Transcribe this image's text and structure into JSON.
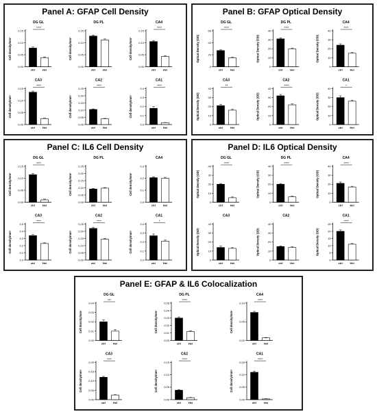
{
  "figure": {
    "x_labels": [
      "ctrl",
      "Hel"
    ],
    "colors": {
      "ctrl": "#000000",
      "hel": "#ffffff",
      "axis": "#000000"
    }
  },
  "chart_data": [
    {
      "title": "Panel A: GFAP Cell Density",
      "type": "bar",
      "ylabel": "Cell density/mm³",
      "charts": [
        {
          "region": "DG GL",
          "categories": [
            "ctrl",
            "Hel"
          ],
          "values": [
            0.078,
            0.038
          ],
          "errors": [
            0.004,
            0.003
          ],
          "ylim": [
            0,
            0.15
          ],
          "ticks": [
            "0.00",
            "0.05",
            "0.10",
            "0.15"
          ],
          "sig": "****"
        },
        {
          "region": "DG PL",
          "categories": [
            "ctrl",
            "Hel"
          ],
          "values": [
            0.128,
            0.112
          ],
          "errors": [
            0.004,
            0.004
          ],
          "ylim": [
            0,
            0.15
          ],
          "ticks": [
            "0.00",
            "0.05",
            "0.10",
            "0.15"
          ],
          "sig": ""
        },
        {
          "region": "CA4",
          "categories": [
            "ctrl",
            "Hel"
          ],
          "values": [
            0.105,
            0.043
          ],
          "errors": [
            0.004,
            0.003
          ],
          "ylim": [
            0,
            0.15
          ],
          "ticks": [
            "0.00",
            "0.05",
            "0.10",
            "0.15"
          ],
          "sig": "****"
        },
        {
          "region": "CA3",
          "categories": [
            "ctrl",
            "Hel"
          ],
          "values": [
            0.135,
            0.025
          ],
          "errors": [
            0.005,
            0.002
          ],
          "ylim": [
            0,
            0.15
          ],
          "ticks": [
            "0.00",
            "0.05",
            "0.10",
            "0.15"
          ],
          "sig": "****"
        },
        {
          "region": "CA2",
          "categories": [
            "ctrl",
            "Hel"
          ],
          "values": [
            0.105,
            0.04
          ],
          "errors": [
            0.004,
            0.003
          ],
          "ylim": [
            0,
            0.25
          ],
          "ticks": [
            "0.00",
            "0.05",
            "0.10",
            "0.15",
            "0.20",
            "0.25"
          ],
          "sig": "****"
        },
        {
          "region": "CA1",
          "categories": [
            "ctrl",
            "Hel"
          ],
          "values": [
            0.18,
            0.02
          ],
          "errors": [
            0.02,
            0.003
          ],
          "ylim": [
            0,
            0.4
          ],
          "ticks": [
            "0.0",
            "0.1",
            "0.2",
            "0.3",
            "0.4"
          ],
          "sig": "****"
        }
      ]
    },
    {
      "title": "Panel B: GFAP Optical Density",
      "type": "bar",
      "ylabel": "Optical Density (OD)",
      "charts": [
        {
          "region": "DG GL",
          "categories": [
            "ctrl",
            "Hel"
          ],
          "values": [
            27,
            15
          ],
          "errors": [
            1.2,
            1
          ],
          "ylim": [
            0,
            60
          ],
          "ticks": [
            "0",
            "20",
            "40",
            "60"
          ],
          "sig": "****"
        },
        {
          "region": "DG PL",
          "categories": [
            "ctrl",
            "Hel"
          ],
          "values": [
            31,
            20
          ],
          "errors": [
            1.2,
            0.8
          ],
          "ylim": [
            0,
            40
          ],
          "ticks": [
            "0",
            "10",
            "20",
            "30",
            "40"
          ],
          "sig": "****"
        },
        {
          "region": "CA4",
          "categories": [
            "ctrl",
            "Hel"
          ],
          "values": [
            24,
            15
          ],
          "errors": [
            1.5,
            0.8
          ],
          "ylim": [
            0,
            40
          ],
          "ticks": [
            "0",
            "10",
            "20",
            "30",
            "40"
          ],
          "sig": "****"
        },
        {
          "region": "CA3",
          "categories": [
            "ctrl",
            "Hel"
          ],
          "values": [
            21,
            16
          ],
          "errors": [
            1.5,
            1
          ],
          "ylim": [
            0,
            40
          ],
          "ticks": [
            "0",
            "10",
            "20",
            "30",
            "40"
          ],
          "sig": "**"
        },
        {
          "region": "CA2",
          "categories": [
            "ctrl",
            "Hel"
          ],
          "values": [
            32,
            22
          ],
          "errors": [
            1.5,
            1
          ],
          "ylim": [
            0,
            40
          ],
          "ticks": [
            "0",
            "10",
            "20",
            "30",
            "40"
          ],
          "sig": "****"
        },
        {
          "region": "CA1",
          "categories": [
            "ctrl",
            "Hel"
          ],
          "values": [
            30,
            26
          ],
          "errors": [
            2,
            1
          ],
          "ylim": [
            0,
            40
          ],
          "ticks": [
            "0",
            "10",
            "20",
            "30",
            "40"
          ],
          "sig": "*"
        }
      ]
    },
    {
      "title": "Panel C: IL6 Cell Density",
      "type": "bar",
      "ylabel": "Cell density/mm³",
      "charts": [
        {
          "region": "DG GL",
          "categories": [
            "ctrl",
            "Hel"
          ],
          "values": [
            0.115,
            0.01
          ],
          "errors": [
            0.005,
            0.003
          ],
          "ylim": [
            0,
            0.15
          ],
          "ticks": [
            "0.00",
            "0.05",
            "0.10",
            "0.15"
          ],
          "sig": "****"
        },
        {
          "region": "DG PL",
          "categories": [
            "ctrl",
            "Hel"
          ],
          "values": [
            0.092,
            0.098
          ],
          "errors": [
            0.004,
            0.004
          ],
          "ylim": [
            0,
            0.25
          ],
          "ticks": [
            "0.00",
            "0.05",
            "0.10",
            "0.15",
            "0.20",
            "0.25"
          ],
          "sig": ""
        },
        {
          "region": "CA4",
          "categories": [
            "ctrl",
            "Hel"
          ],
          "values": [
            0.205,
            0.2
          ],
          "errors": [
            0.008,
            0.008
          ],
          "ylim": [
            0,
            0.3
          ],
          "ticks": [
            "0.0",
            "0.1",
            "0.2",
            "0.3"
          ],
          "sig": ""
        },
        {
          "region": "CA3",
          "categories": [
            "ctrl",
            "Hel"
          ],
          "values": [
            0.34,
            0.23
          ],
          "errors": [
            0.015,
            0.01
          ],
          "ylim": [
            0,
            0.5
          ],
          "ticks": [
            "0.0",
            "0.1",
            "0.2",
            "0.3",
            "0.4",
            "0.5"
          ],
          "sig": "****"
        },
        {
          "region": "CA2",
          "categories": [
            "ctrl",
            "Hel"
          ],
          "values": [
            0.22,
            0.145
          ],
          "errors": [
            0.008,
            0.006
          ],
          "ylim": [
            0,
            0.25
          ],
          "ticks": [
            "0.00",
            "0.05",
            "0.10",
            "0.15",
            "0.20",
            "0.25"
          ],
          "sig": "****"
        },
        {
          "region": "CA1",
          "categories": [
            "ctrl",
            "Hel"
          ],
          "values": [
            0.27,
            0.21
          ],
          "errors": [
            0.02,
            0.012
          ],
          "ylim": [
            0,
            0.4
          ],
          "ticks": [
            "0.0",
            "0.1",
            "0.2",
            "0.3",
            "0.4"
          ],
          "sig": "*"
        }
      ]
    },
    {
      "title": "Panel D: IL6 Optical Density",
      "type": "bar",
      "ylabel": "Optical Density (OD)",
      "charts": [
        {
          "region": "DG GL",
          "categories": [
            "ctrl",
            "Hel"
          ],
          "values": [
            20,
            5
          ],
          "errors": [
            0.8,
            0.8
          ],
          "ylim": [
            0,
            40
          ],
          "ticks": [
            "0",
            "10",
            "20",
            "30",
            "40"
          ],
          "sig": "****"
        },
        {
          "region": "DG PL",
          "categories": [
            "ctrl",
            "Hel"
          ],
          "values": [
            20,
            6
          ],
          "errors": [
            0.8,
            0.8
          ],
          "ylim": [
            0,
            40
          ],
          "ticks": [
            "0",
            "10",
            "20",
            "30",
            "40"
          ],
          "sig": "****"
        },
        {
          "region": "CA4",
          "categories": [
            "ctrl",
            "Hel"
          ],
          "values": [
            21,
            17
          ],
          "errors": [
            1.5,
            0.8
          ],
          "ylim": [
            0,
            40
          ],
          "ticks": [
            "0",
            "10",
            "20",
            "30",
            "40"
          ],
          "sig": "****"
        },
        {
          "region": "CA3",
          "categories": [
            "ctrl",
            "Hel"
          ],
          "values": [
            14,
            13
          ],
          "errors": [
            1.5,
            0.8
          ],
          "ylim": [
            0,
            40
          ],
          "ticks": [
            "0",
            "10",
            "20",
            "30",
            "40"
          ],
          "sig": ""
        },
        {
          "region": "CA2",
          "categories": [
            "ctrl",
            "Hel"
          ],
          "values": [
            15,
            14
          ],
          "errors": [
            0.8,
            0.8
          ],
          "ylim": [
            0,
            40
          ],
          "ticks": [
            "0",
            "10",
            "20",
            "30",
            "40"
          ],
          "sig": ""
        },
        {
          "region": "CA1",
          "categories": [
            "ctrl",
            "Hel"
          ],
          "values": [
            20,
            11
          ],
          "errors": [
            1,
            0.5
          ],
          "ylim": [
            0,
            25
          ],
          "ticks": [
            "0",
            "5",
            "10",
            "15",
            "20",
            "25"
          ],
          "sig": "****"
        }
      ]
    },
    {
      "title": "Panel E: GFAP & IL6 Colocalization",
      "type": "bar",
      "ylabel": "Cell density/mm³",
      "charts": [
        {
          "region": "DG GL",
          "categories": [
            "ctrl",
            "Hel"
          ],
          "values": [
            0.02,
            0.01
          ],
          "errors": [
            0.002,
            0.0015
          ],
          "ylim": [
            0,
            0.04
          ],
          "ticks": [
            "0.00",
            "0.01",
            "0.02",
            "0.03",
            "0.04"
          ],
          "sig": "***"
        },
        {
          "region": "DG PL",
          "categories": [
            "ctrl",
            "Hel"
          ],
          "values": [
            0.03,
            0.012
          ],
          "errors": [
            0.0015,
            0.001
          ],
          "ylim": [
            0,
            0.05
          ],
          "ticks": [
            "0.00",
            "0.01",
            "0.02",
            "0.03",
            "0.04",
            "0.05"
          ],
          "sig": "****"
        },
        {
          "region": "CA4",
          "categories": [
            "ctrl",
            "Hel"
          ],
          "values": [
            0.075,
            0.007
          ],
          "errors": [
            0.003,
            0.001
          ],
          "ylim": [
            0,
            0.1
          ],
          "ticks": [
            "0.00",
            "0.05",
            "0.10"
          ],
          "sig": "****"
        },
        {
          "region": "CA3",
          "categories": [
            "ctrl",
            "Hel"
          ],
          "values": [
            0.12,
            0.025
          ],
          "errors": [
            0.005,
            0.002
          ],
          "ylim": [
            0,
            0.2
          ],
          "ticks": [
            "0.00",
            "0.05",
            "0.10",
            "0.15",
            "0.20"
          ],
          "sig": "****"
        },
        {
          "region": "CA2",
          "categories": [
            "ctrl",
            "Hel"
          ],
          "values": [
            0.038,
            0.008
          ],
          "errors": [
            0.002,
            0.001
          ],
          "ylim": [
            0,
            0.15
          ],
          "ticks": [
            "0.00",
            "0.05",
            "0.10",
            "0.15"
          ],
          "sig": "****"
        },
        {
          "region": "CA1",
          "categories": [
            "ctrl",
            "Hel"
          ],
          "values": [
            0.11,
            0.003
          ],
          "errors": [
            0.005,
            0.001
          ],
          "ylim": [
            0,
            0.15
          ],
          "ticks": [
            "0.00",
            "0.05",
            "0.10",
            "0.15"
          ],
          "sig": "****"
        }
      ]
    }
  ]
}
